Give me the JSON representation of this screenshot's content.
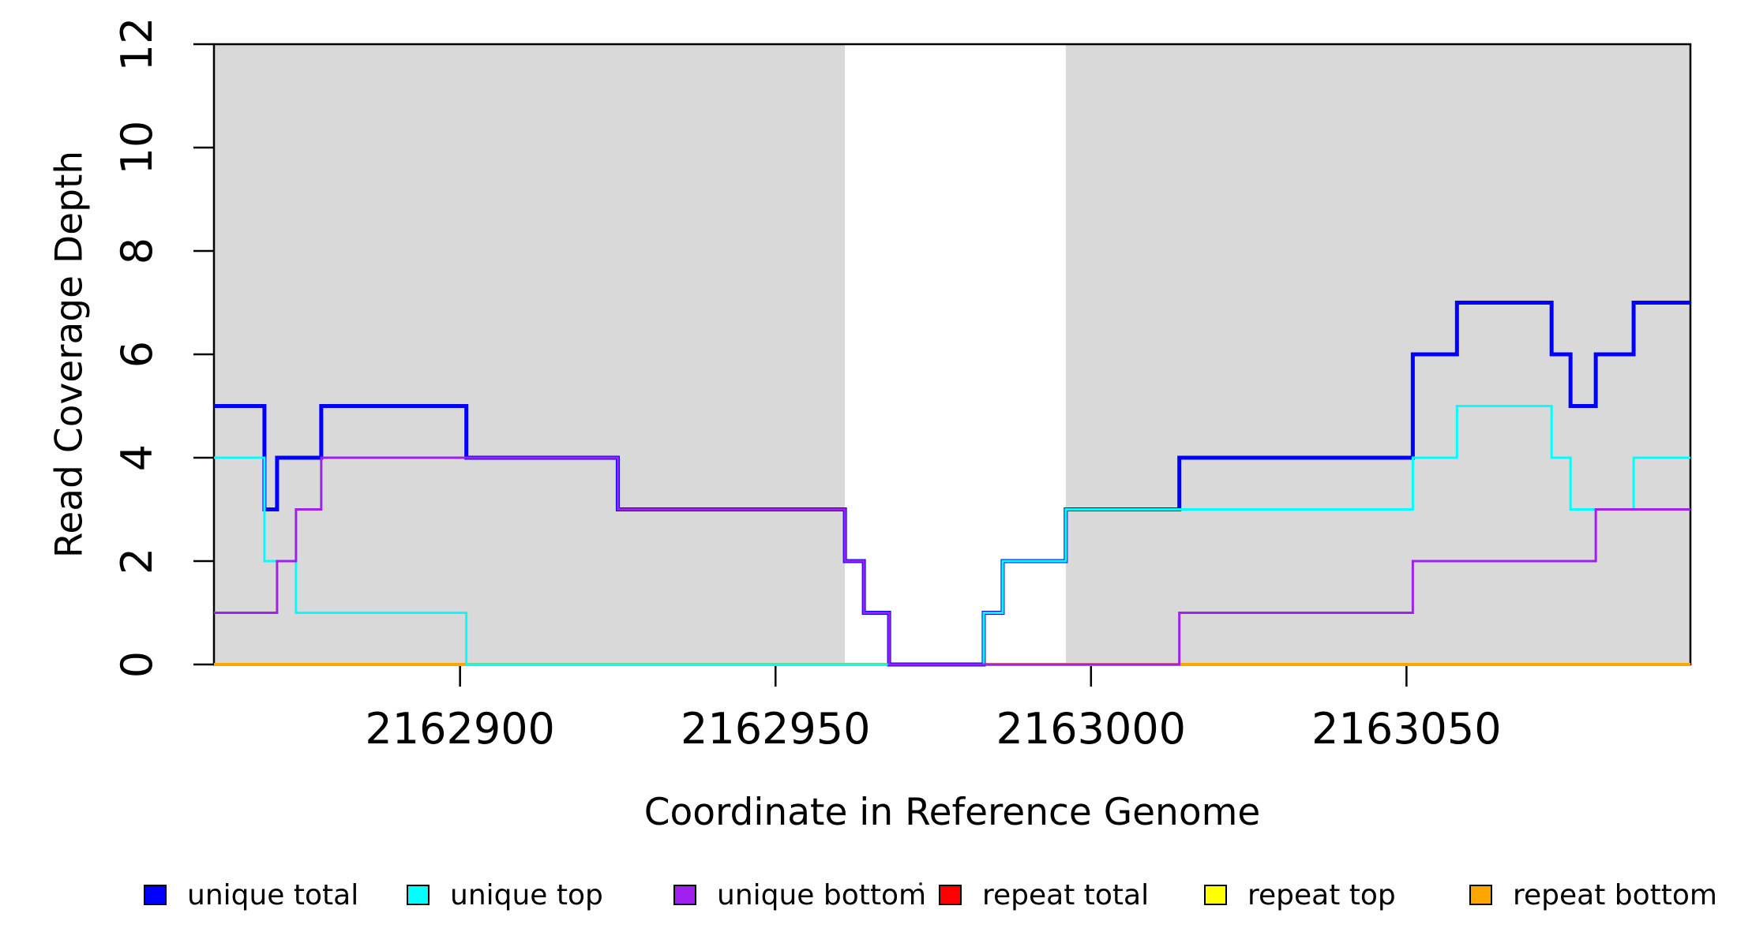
{
  "figure": {
    "x_title": "Coordinate in Reference Genome",
    "y_title": "Read Coverage Depth"
  },
  "chart_data": {
    "type": "line",
    "subtype": "step-post",
    "title": "",
    "xlabel": "Coordinate in Reference Genome",
    "ylabel": "Read Coverage Depth",
    "xlim": [
      2162861,
      2163095
    ],
    "ylim": [
      0,
      12
    ],
    "x_ticks": [
      2162900,
      2162950,
      2163000,
      2163050
    ],
    "y_ticks": [
      0,
      2,
      4,
      6,
      8,
      10,
      12
    ],
    "grid": false,
    "legend_position": "bottom",
    "background_color": "#ffffff",
    "shaded_region_color": "#d9d9d9",
    "shaded_regions": [
      {
        "from": 2162861,
        "to": 2162961
      },
      {
        "from": 2162996,
        "to": 2163095
      }
    ],
    "draw_order": [
      "repeat total",
      "repeat top",
      "repeat bottom",
      "unique total",
      "unique top",
      "unique bottom"
    ],
    "series": [
      {
        "name": "unique total",
        "color": "#0000ff",
        "line_width": 5,
        "steps": [
          [
            2162861,
            5
          ],
          [
            2162869,
            3
          ],
          [
            2162871,
            4
          ],
          [
            2162878,
            5
          ],
          [
            2162901,
            4
          ],
          [
            2162925,
            3
          ],
          [
            2162961,
            2
          ],
          [
            2162964,
            1
          ],
          [
            2162968,
            0
          ],
          [
            2162983,
            1
          ],
          [
            2162986,
            2
          ],
          [
            2162996,
            3
          ],
          [
            2163014,
            4
          ],
          [
            2163051,
            6
          ],
          [
            2163058,
            7
          ],
          [
            2163073,
            6
          ],
          [
            2163076,
            5
          ],
          [
            2163080,
            6
          ],
          [
            2163086,
            7
          ]
        ]
      },
      {
        "name": "unique top",
        "color": "#00ffff",
        "line_width": 3,
        "steps": [
          [
            2162861,
            4
          ],
          [
            2162869,
            2
          ],
          [
            2162874,
            1
          ],
          [
            2162901,
            0
          ],
          [
            2162983,
            1
          ],
          [
            2162986,
            2
          ],
          [
            2162996,
            3
          ],
          [
            2163051,
            4
          ],
          [
            2163058,
            5
          ],
          [
            2163073,
            4
          ],
          [
            2163076,
            3
          ],
          [
            2163086,
            4
          ]
        ]
      },
      {
        "name": "unique bottom",
        "color": "#a020f0",
        "line_width": 3,
        "steps": [
          [
            2162861,
            1
          ],
          [
            2162871,
            2
          ],
          [
            2162874,
            3
          ],
          [
            2162878,
            4
          ],
          [
            2162925,
            3
          ],
          [
            2162961,
            2
          ],
          [
            2162964,
            1
          ],
          [
            2162968,
            0
          ],
          [
            2163014,
            1
          ],
          [
            2163051,
            2
          ],
          [
            2163080,
            3
          ]
        ]
      },
      {
        "name": "repeat total",
        "color": "#ff0000",
        "line_width": 3,
        "steps": [
          [
            2162861,
            0
          ]
        ]
      },
      {
        "name": "repeat top",
        "color": "#ffff00",
        "line_width": 3,
        "steps": [
          [
            2162861,
            0
          ]
        ]
      },
      {
        "name": "repeat bottom",
        "color": "#ffa500",
        "line_width": 4,
        "steps": [
          [
            2162861,
            0
          ]
        ]
      }
    ]
  },
  "legend": {
    "items": [
      {
        "label": "unique total",
        "color": "#0000ff"
      },
      {
        "label": "unique top",
        "color": "#00ffff"
      },
      {
        "label": "unique bottom",
        "color": "#a020f0"
      },
      {
        "label": "repeat total",
        "color": "#ff0000"
      },
      {
        "label": "repeat top",
        "color": "#ffff00"
      },
      {
        "label": "repeat bottom",
        "color": "#ffa500"
      }
    ]
  }
}
